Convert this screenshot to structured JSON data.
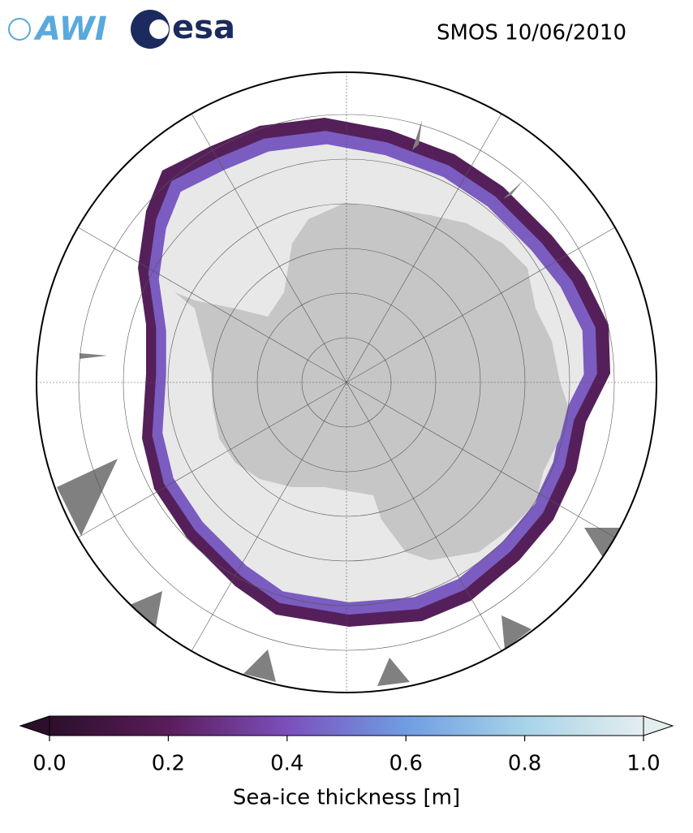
{
  "header": {
    "logos": [
      "AWI",
      "esa"
    ],
    "title": "SMOS 10/06/2010"
  },
  "map": {
    "colorbar": {
      "label": "Sea-ice thickness [m]",
      "lim": [
        0,
        1
      ],
      "ticks": [
        {
          "value": 0,
          "label": "0.0"
        },
        0.2,
        0.4,
        0.6,
        0.8,
        {
          "value": 1,
          "label": "1.0"
        }
      ],
      "colors": [
        "#2b0f2b",
        "#5a1d5a",
        "#7c4fbc",
        "#6f9de2",
        "#a7d3e8",
        "#e4eeee"
      ],
      "extend": "both"
    }
  }
}
